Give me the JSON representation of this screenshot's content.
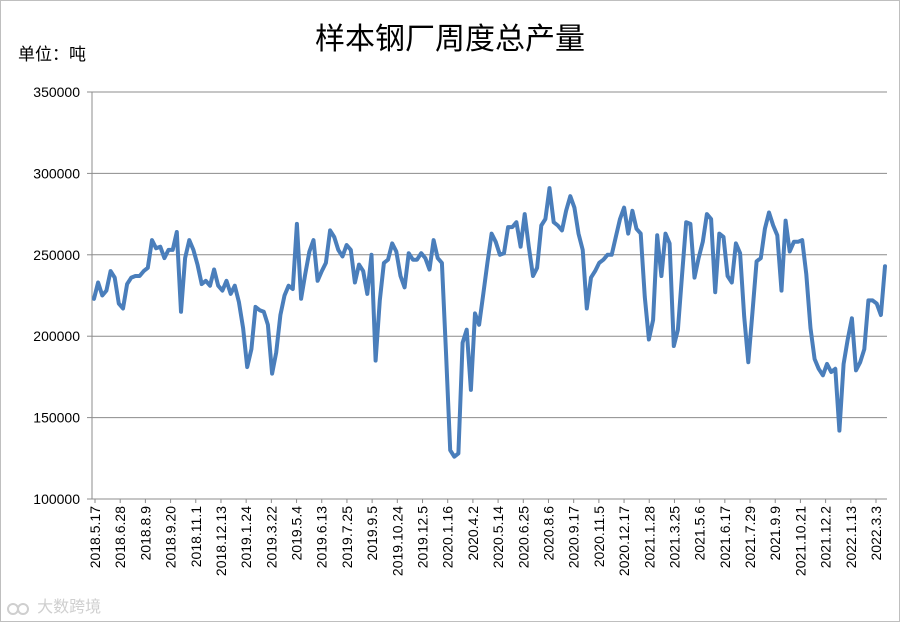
{
  "chart_data": {
    "type": "line",
    "title": "样本钢厂周度总产量",
    "unit_label": "单位：吨",
    "ylim": [
      100000,
      350000
    ],
    "yticks": [
      "350000",
      "300000",
      "250000",
      "200000",
      "150000",
      "100000"
    ],
    "x_tick_labels": [
      "2018.5.17",
      "2018.6.28",
      "2018.8.9",
      "2018.9.20",
      "2018.11.1",
      "2018.12.13",
      "2019.1.24",
      "2019.3.22",
      "2019.5.4",
      "2019.6.13",
      "2019.7.25",
      "2019.9.5",
      "2019.10.24",
      "2019.12.5",
      "2020.1.16",
      "2020.4.2",
      "2020.5.14",
      "2020.6.25",
      "2020.8.6",
      "2020.9.17",
      "2020.11.5",
      "2020.12.17",
      "2021.1.28",
      "2021.3.25",
      "2021.5.6",
      "2021.6.17",
      "2021.7.29",
      "2021.9.9",
      "2021.10.21",
      "2021.12.2",
      "2022.1.13",
      "2022.3.3"
    ],
    "series": [
      {
        "color": "#4a7ebb",
        "values": [
          223000,
          233000,
          225000,
          228000,
          240000,
          236000,
          220000,
          217000,
          232000,
          236000,
          237000,
          237000,
          240000,
          242000,
          259000,
          254000,
          255000,
          248000,
          253000,
          253000,
          264000,
          215000,
          248000,
          259000,
          253000,
          244000,
          232000,
          234000,
          231000,
          241000,
          231000,
          228000,
          234000,
          226000,
          231000,
          221000,
          205000,
          181000,
          192000,
          218000,
          216000,
          215000,
          207000,
          177000,
          190000,
          213000,
          225000,
          231000,
          229000,
          269000,
          223000,
          238000,
          252000,
          259000,
          234000,
          240000,
          245000,
          265000,
          261000,
          253000,
          249000,
          256000,
          253000,
          233000,
          244000,
          240000,
          226000,
          250000,
          185000,
          222000,
          245000,
          247000,
          257000,
          252000,
          237000,
          230000,
          251000,
          247000,
          247000,
          251000,
          248000,
          241000,
          259000,
          248000,
          245000,
          190000,
          130000,
          126000,
          128000,
          196000,
          204000,
          167000,
          214000,
          207000,
          226000,
          245000,
          263000,
          258000,
          250000,
          251000,
          267000,
          267000,
          270000,
          255000,
          275000,
          255000,
          237000,
          242000,
          268000,
          272000,
          291000,
          270000,
          268000,
          265000,
          277000,
          286000,
          279000,
          263000,
          253000,
          217000,
          236000,
          240000,
          245000,
          247000,
          250000,
          250000,
          261000,
          272000,
          279000,
          263000,
          277000,
          266000,
          263000,
          224000,
          198000,
          210000,
          262000,
          237000,
          263000,
          257000,
          194000,
          204000,
          238000,
          270000,
          269000,
          236000,
          248000,
          258000,
          275000,
          272000,
          227000,
          263000,
          261000,
          237000,
          233000,
          257000,
          251000,
          212000,
          184000,
          215000,
          246000,
          248000,
          266000,
          276000,
          268000,
          262000,
          228000,
          271000,
          252000,
          258000,
          258000,
          259000,
          238000,
          205000,
          186000,
          180000,
          176000,
          183000,
          178000,
          180000,
          142000,
          183000,
          198000,
          211000,
          179000,
          184000,
          192000,
          222000,
          222000,
          220000,
          213000,
          243000
        ]
      }
    ],
    "grid": "horizontal"
  },
  "watermark": "大数跨境"
}
